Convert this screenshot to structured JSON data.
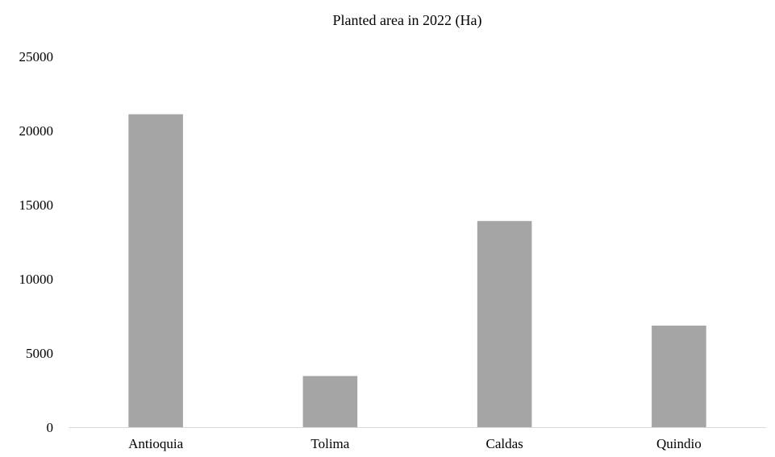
{
  "chart_data": {
    "type": "bar",
    "title": "Planted area in 2022 (Ha)",
    "xlabel": "",
    "ylabel": "",
    "categories": [
      "Antioquia",
      "Tolima",
      "Caldas",
      "Quindio"
    ],
    "values": [
      21100,
      3450,
      13900,
      6850
    ],
    "ylim": [
      0,
      25000
    ],
    "yticks": [
      "0",
      "5000",
      "10000",
      "15000",
      "20000",
      "25000"
    ],
    "grid": false,
    "legend": "none",
    "bar_color": "#a5a5a5",
    "axis_color": "#d9d9d9"
  }
}
